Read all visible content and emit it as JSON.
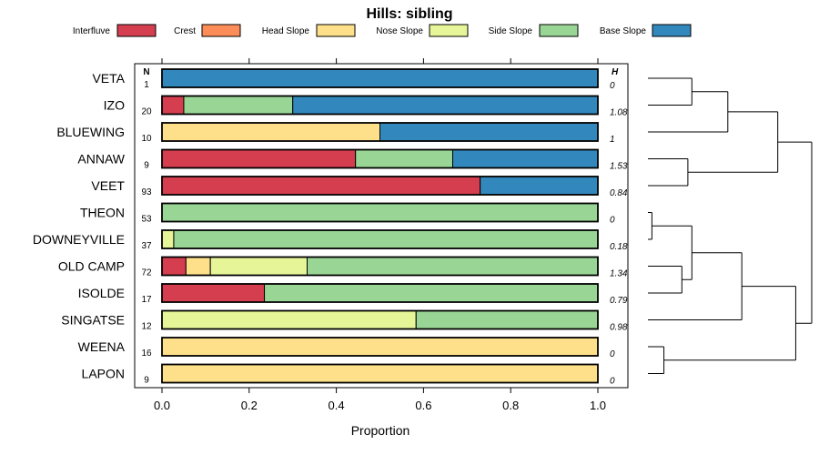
{
  "chart_data": {
    "type": "bar",
    "orientation": "horizontal-stacked",
    "title": "Hills: sibling",
    "xlabel": "Proportion",
    "ylabel": "",
    "xlim": [
      0,
      1
    ],
    "xticks": [
      0.0,
      0.2,
      0.4,
      0.6,
      0.8,
      1.0
    ],
    "xtick_labels": [
      "0.0",
      "0.2",
      "0.4",
      "0.6",
      "0.8",
      "1.0"
    ],
    "n_header": "N",
    "h_header": "H",
    "legend_position": "top",
    "series": [
      {
        "name": "Interfluve",
        "color": "#d53e4f"
      },
      {
        "name": "Crest",
        "color": "#fc8d59"
      },
      {
        "name": "Head Slope",
        "color": "#fee08b"
      },
      {
        "name": "Nose Slope",
        "color": "#e6f598"
      },
      {
        "name": "Side Slope",
        "color": "#99d594"
      },
      {
        "name": "Base Slope",
        "color": "#3288bd"
      }
    ],
    "categories": [
      "VETA",
      "IZO",
      "BLUEWING",
      "ANNAW",
      "VEET",
      "THEON",
      "DOWNEYVILLE",
      "OLD CAMP",
      "ISOLDE",
      "SINGATSE",
      "WEENA",
      "LAPON"
    ],
    "n": [
      "1",
      "20",
      "10",
      "9",
      "93",
      "53",
      "37",
      "72",
      "17",
      "12",
      "16",
      "9"
    ],
    "h": [
      "0",
      "1.08",
      "1",
      "1.53",
      "0.84",
      "0",
      "0.18",
      "1.34",
      "0.79",
      "0.98",
      "0",
      "0"
    ],
    "proportions": [
      [
        0,
        0,
        0,
        0,
        0,
        1
      ],
      [
        0.05,
        0,
        0,
        0,
        0.25,
        0.7
      ],
      [
        0,
        0,
        0.5,
        0,
        0,
        0.5
      ],
      [
        0.444,
        0,
        0,
        0,
        0.223,
        0.333
      ],
      [
        0.73,
        0,
        0,
        0,
        0,
        0.27
      ],
      [
        0,
        0,
        0,
        0,
        1,
        0
      ],
      [
        0,
        0,
        0,
        0.027,
        0.973,
        0
      ],
      [
        0.055,
        0,
        0.056,
        0.222,
        0.667,
        0
      ],
      [
        0.235,
        0,
        0,
        0,
        0.765,
        0
      ],
      [
        0,
        0,
        0,
        0.583,
        0.417,
        0
      ],
      [
        0,
        0,
        1,
        0,
        0,
        0
      ],
      [
        0,
        0,
        1,
        0,
        0,
        0
      ]
    ],
    "dendrogram": {
      "leaves": [
        "VETA",
        "IZO",
        "BLUEWING",
        "ANNAW",
        "VEET",
        "THEON",
        "DOWNEYVILLE",
        "OLD CAMP",
        "ISOLDE",
        "SINGATSE",
        "WEENA",
        "LAPON"
      ],
      "merges": [
        {
          "a": "leaf:5",
          "b": "leaf:6",
          "height": 0.02
        },
        {
          "a": "leaf:7",
          "b": "leaf:8",
          "height": 0.17
        },
        {
          "a": "node:0",
          "b": "node:1",
          "height": 0.22
        },
        {
          "a": "node:2",
          "b": "leaf:9",
          "height": 0.47
        },
        {
          "a": "leaf:0",
          "b": "leaf:1",
          "height": 0.22
        },
        {
          "a": "node:4",
          "b": "leaf:2",
          "height": 0.4
        },
        {
          "a": "leaf:3",
          "b": "leaf:4",
          "height": 0.2
        },
        {
          "a": "node:5",
          "b": "node:6",
          "height": 0.65
        },
        {
          "a": "leaf:10",
          "b": "leaf:11",
          "height": 0.08
        },
        {
          "a": "node:3",
          "b": "node:8",
          "height": 0.74
        },
        {
          "a": "node:7",
          "b": "node:9",
          "height": 0.82
        }
      ]
    }
  }
}
